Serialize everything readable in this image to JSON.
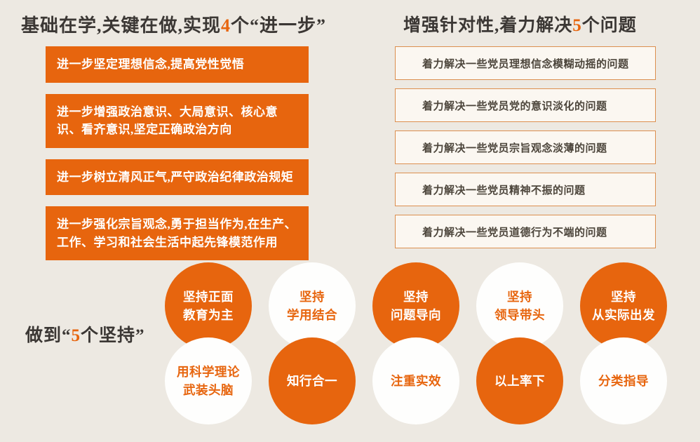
{
  "colors": {
    "accent_orange": "#E7650E",
    "background": "#EDE9E2",
    "title_text": "#3B3734",
    "problem_box_border": "#DC8F4F",
    "problem_box_fill": "#FBF7F1",
    "problem_box_text": "#4D463C"
  },
  "left_panel": {
    "title_prefix": "基础在学,关键在做,实现",
    "title_number": "4",
    "title_suffix": "个“进一步”",
    "boxes": [
      "进一步坚定理想信念,提高党性觉悟",
      "进一步增强政治意识、大局意识、核心意识、看齐意识,坚定正确政治方向",
      "进一步树立清风正气,严守政治纪律政治规矩",
      "进一步强化宗旨观念,勇于担当作为,在生产、工作、学习和社会生活中起先锋模范作用"
    ]
  },
  "right_panel": {
    "title_prefix": "增强针对性,着力解决",
    "title_number": "5",
    "title_suffix": "个问题",
    "boxes": [
      "着力解决一些党员理想信念模糊动摇的问题",
      "着力解决一些党员党的意识淡化的问题",
      "着力解决一些党员宗旨观念淡薄的问题",
      "着力解决一些党员精神不振的问题",
      "着力解决一些党员道德行为不端的问题"
    ]
  },
  "bottom_panel": {
    "label_prefix": "做到“",
    "label_number": "5",
    "label_suffix": "个坚持”",
    "circles_top": [
      "坚持正面\n教育为主",
      "坚持\n学用结合",
      "坚持\n问题导向",
      "坚持\n领导带头",
      "坚持\n从实际出发"
    ],
    "circles_bottom": [
      "用科学理论\n武装头脑",
      "知行合一",
      "注重实效",
      "以上率下",
      "分类指导"
    ]
  }
}
